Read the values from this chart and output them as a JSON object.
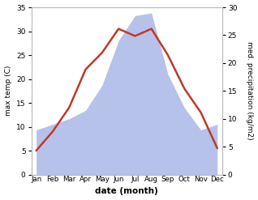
{
  "months": [
    "Jan",
    "Feb",
    "Mar",
    "Apr",
    "May",
    "Jun",
    "Jul",
    "Aug",
    "Sep",
    "Oct",
    "Nov",
    "Dec"
  ],
  "temperature": [
    5.0,
    9.0,
    14.0,
    22.0,
    25.5,
    30.5,
    29.0,
    30.5,
    25.0,
    18.0,
    13.0,
    5.5
  ],
  "precipitation": [
    8.0,
    9.0,
    10.0,
    11.5,
    16.0,
    24.0,
    28.5,
    29.0,
    18.0,
    12.0,
    8.0,
    9.0
  ],
  "temp_ylim": [
    0,
    35
  ],
  "precip_ylim": [
    0,
    30
  ],
  "temp_yticks": [
    0,
    5,
    10,
    15,
    20,
    25,
    30,
    35
  ],
  "precip_yticks": [
    0,
    5,
    10,
    15,
    20,
    25,
    30
  ],
  "precip_scale_factor": 1.1667,
  "temp_color": "#c0392b",
  "precip_fill_color": "#b0bce8",
  "xlabel": "date (month)",
  "ylabel_left": "max temp (C)",
  "ylabel_right": "med. precipitation (kg/m2)",
  "bg_color": "#ffffff"
}
